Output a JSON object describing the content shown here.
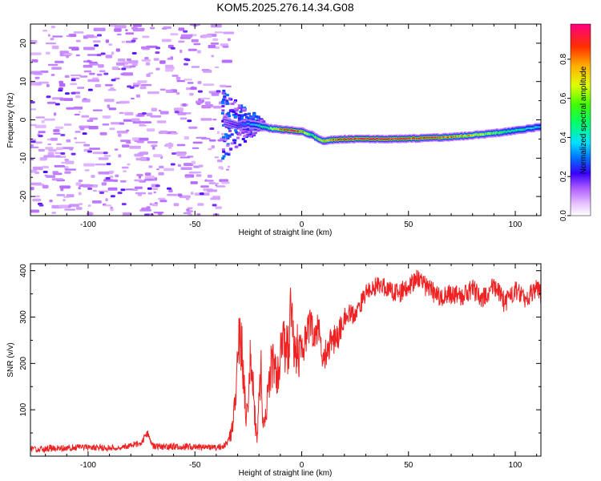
{
  "title": "KOM5.2025.276.14.34.G08",
  "chart_data": [
    {
      "type": "heatmap",
      "title": "KOM5.2025.276.14.34.G08",
      "xlabel": "Height of straight line (km)",
      "ylabel": "Frequency (Hz)",
      "xlim": [
        -127,
        112
      ],
      "ylim": [
        -25,
        25
      ],
      "xticks": [
        -100,
        -50,
        0,
        50,
        100
      ],
      "yticks": [
        -20,
        -10,
        0,
        10,
        20
      ],
      "colorbar": {
        "label": "Normalized spectral amplitude",
        "range": [
          0.0,
          0.98
        ],
        "ticks": [
          0.0,
          0.2,
          0.4,
          0.6,
          0.8
        ]
      },
      "noise_region": {
        "x_range": [
          -127,
          -38
        ],
        "y_range": [
          -25,
          25
        ]
      },
      "signal_trace": {
        "x": [
          -36,
          -30,
          -25,
          -20,
          -15,
          -10,
          -5,
          0,
          5,
          10,
          15,
          20,
          30,
          40,
          50,
          60,
          70,
          80,
          90,
          100,
          112
        ],
        "freq": [
          -0.5,
          -1.5,
          -1.0,
          -1.5,
          -2.2,
          -2.5,
          -2.7,
          -3.0,
          -4.0,
          -5.5,
          -5.2,
          -5.0,
          -5.0,
          -5.0,
          -4.9,
          -4.7,
          -4.5,
          -4.0,
          -3.5,
          -2.8,
          -1.8
        ],
        "amplitude": [
          0.15,
          0.25,
          0.35,
          0.45,
          0.55,
          0.8,
          0.95,
          0.9,
          0.55,
          0.75,
          0.85,
          0.95,
          0.95,
          0.95,
          0.9,
          0.95,
          0.85,
          0.75,
          0.6,
          0.5,
          0.4
        ]
      }
    },
    {
      "type": "line",
      "xlabel": "Height of straight line (km)",
      "ylabel": "SNR (v/v)",
      "xlim": [
        -127,
        112
      ],
      "ylim": [
        0,
        415
      ],
      "xticks": [
        -100,
        -50,
        0,
        50,
        100
      ],
      "yticks": [
        100,
        200,
        300,
        400
      ],
      "series": [
        {
          "name": "SNR",
          "color": "#ee2222",
          "x": [
            -127,
            -110,
            -100,
            -90,
            -80,
            -75,
            -72,
            -70,
            -60,
            -50,
            -40,
            -35,
            -33,
            -31,
            -30,
            -29,
            -28,
            -27,
            -26,
            -25,
            -24,
            -23,
            -22,
            -21,
            -20,
            -19,
            -18,
            -17,
            -16,
            -15,
            -14,
            -12,
            -10,
            -8,
            -6,
            -5,
            -4,
            -2,
            0,
            2,
            4,
            6,
            8,
            10,
            12,
            15,
            18,
            20,
            22,
            25,
            30,
            35,
            40,
            45,
            50,
            55,
            57,
            60,
            65,
            70,
            75,
            80,
            85,
            90,
            95,
            100,
            105,
            110,
            112
          ],
          "y": [
            15,
            18,
            20,
            17,
            22,
            30,
            50,
            22,
            20,
            20,
            18,
            25,
            50,
            120,
            200,
            260,
            230,
            150,
            80,
            120,
            220,
            180,
            90,
            40,
            120,
            180,
            60,
            90,
            120,
            180,
            200,
            170,
            210,
            240,
            220,
            330,
            260,
            230,
            230,
            250,
            290,
            250,
            280,
            190,
            240,
            250,
            270,
            300,
            310,
            300,
            350,
            370,
            360,
            350,
            365,
            385,
            370,
            360,
            340,
            350,
            345,
            360,
            340,
            370,
            330,
            360,
            340,
            360,
            350
          ]
        }
      ]
    }
  ]
}
